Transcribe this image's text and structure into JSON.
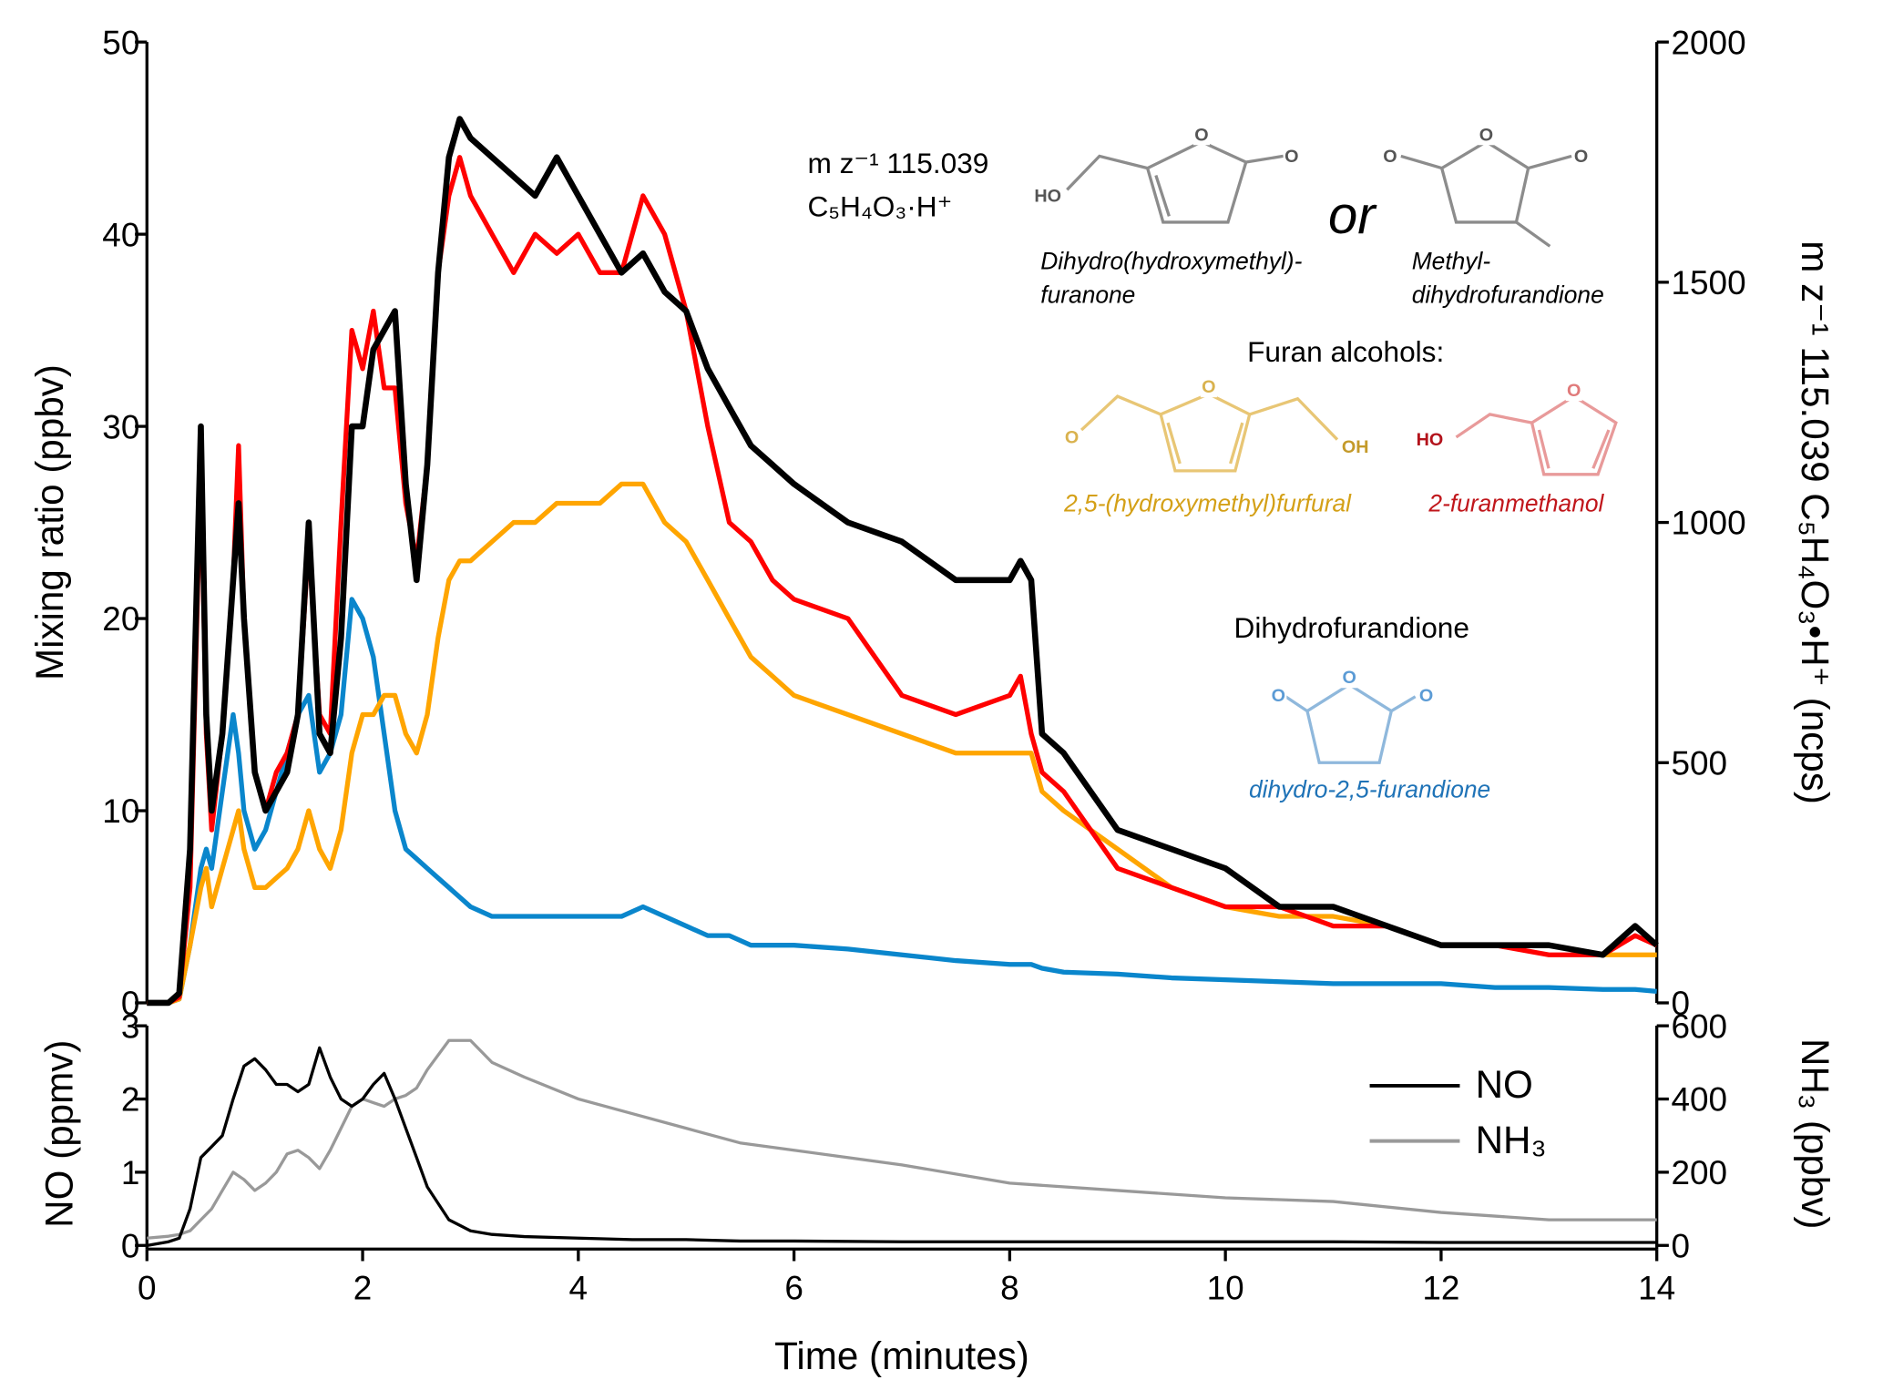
{
  "chart_data": [
    {
      "type": "line",
      "ylabel": "Mixing ratio (ppbv)",
      "y2label": "m z⁻¹ 115.039 C₅H₄O₃•H⁺ (ncps)",
      "xlim": [
        0,
        14
      ],
      "ylim": [
        0,
        50
      ],
      "yticks": [
        0,
        10,
        20,
        30,
        40,
        50
      ],
      "y2lim": [
        0,
        2000
      ],
      "y2ticks": [
        0,
        500,
        1000,
        1500,
        2000
      ],
      "x": [
        0,
        0.2,
        0.3,
        0.4,
        0.5,
        0.55,
        0.6,
        0.7,
        0.8,
        0.85,
        0.9,
        1.0,
        1.1,
        1.2,
        1.3,
        1.4,
        1.5,
        1.6,
        1.7,
        1.8,
        1.9,
        2.0,
        2.1,
        2.2,
        2.3,
        2.4,
        2.5,
        2.6,
        2.7,
        2.8,
        2.9,
        3.0,
        3.2,
        3.4,
        3.6,
        3.8,
        4.0,
        4.2,
        4.4,
        4.6,
        4.8,
        5.0,
        5.2,
        5.4,
        5.6,
        5.8,
        6.0,
        6.5,
        7.0,
        7.5,
        8.0,
        8.1,
        8.2,
        8.3,
        8.5,
        9.0,
        9.5,
        10.0,
        10.5,
        11.0,
        11.5,
        12.0,
        12.5,
        13.0,
        13.5,
        13.8,
        14.0
      ],
      "series": [
        {
          "name": "2-furanmethanol",
          "color": "#ff0000",
          "values": [
            0,
            0,
            0.3,
            6,
            28,
            14,
            9,
            14,
            22,
            29,
            20,
            12,
            10,
            12,
            13,
            15,
            24,
            15,
            14,
            25,
            35,
            33,
            36,
            32,
            32,
            26,
            23,
            28,
            38,
            42,
            44,
            42,
            40,
            38,
            40,
            39,
            40,
            38,
            38,
            42,
            40,
            36,
            30,
            25,
            24,
            22,
            21,
            20,
            16,
            15,
            16,
            17,
            14,
            12,
            11,
            7,
            6,
            5,
            5,
            4,
            4,
            3,
            3,
            2.5,
            2.5,
            3.5,
            3
          ]
        },
        {
          "name": "2,5-(hydroxymethyl)furfural",
          "color": "#ffa500",
          "values": [
            0,
            0,
            0.2,
            3,
            6,
            7,
            5,
            7,
            9,
            10,
            8,
            6,
            6,
            6.5,
            7,
            8,
            10,
            8,
            7,
            9,
            13,
            15,
            15,
            16,
            16,
            14,
            13,
            15,
            19,
            22,
            23,
            23,
            24,
            25,
            25,
            26,
            26,
            26,
            27,
            27,
            25,
            24,
            22,
            20,
            18,
            17,
            16,
            15,
            14,
            13,
            13,
            13,
            13,
            11,
            10,
            8,
            6,
            5,
            4.5,
            4.5,
            4,
            3,
            3,
            3,
            2.5,
            2.5,
            2.5
          ]
        },
        {
          "name": "dihydro-2,5-furandione",
          "color": "#0a86cc",
          "values": [
            0,
            0,
            0.2,
            3,
            7,
            8,
            7,
            11,
            15,
            13,
            10,
            8,
            9,
            11,
            13,
            15,
            16,
            12,
            13,
            15,
            21,
            20,
            18,
            14,
            10,
            8,
            7.5,
            7,
            6.5,
            6,
            5.5,
            5,
            4.5,
            4.5,
            4.5,
            4.5,
            4.5,
            4.5,
            4.5,
            5,
            4.5,
            4,
            3.5,
            3.5,
            3,
            3,
            3,
            2.8,
            2.5,
            2.2,
            2,
            2,
            2,
            1.8,
            1.6,
            1.5,
            1.3,
            1.2,
            1.1,
            1,
            1,
            1,
            0.8,
            0.8,
            0.7,
            0.7,
            0.6
          ]
        },
        {
          "color": "#000000",
          "values": [
            0,
            0,
            0.5,
            8,
            30,
            15,
            10,
            14,
            22,
            26,
            20,
            12,
            10,
            11,
            12,
            15,
            25,
            14,
            13,
            19,
            30,
            30,
            34,
            35,
            36,
            27,
            22,
            28,
            38,
            44,
            46,
            45,
            44,
            43,
            42,
            44,
            42,
            40,
            38,
            39,
            37,
            36,
            33,
            31,
            29,
            28,
            27,
            25,
            24,
            22,
            22,
            23,
            22,
            14,
            13,
            9,
            8,
            7,
            5,
            5,
            4,
            3,
            3,
            3,
            2.5,
            4,
            3
          ]
        }
      ],
      "annotations": [
        "m z⁻¹ 115.039",
        "C₅H₄O₃·H⁺",
        "Dihydro(hydroxymethyl)-",
        "furanone",
        "or",
        "Methyl-",
        "dihydrofurandione",
        "Furan alcohols:",
        "2,5-(hydroxymethyl)furfural",
        "2-furanmethanol",
        "Dihydrofurandione",
        "dihydro-2,5-furandione"
      ],
      "atoms": [
        "HO",
        "O",
        "O",
        "O",
        "O",
        "O",
        "O",
        "O",
        "OH",
        "HO",
        "O",
        "O",
        "O",
        "O"
      ]
    },
    {
      "type": "line",
      "xlabel": "Time (minutes)",
      "ylabel": "NO (ppmv)",
      "y2label": "NH₃ (ppbv)",
      "xlim": [
        0,
        14
      ],
      "xticks": [
        0,
        2,
        4,
        6,
        8,
        10,
        12,
        14
      ],
      "ylim": [
        -0.05,
        3.1
      ],
      "yticks": [
        0,
        1,
        2,
        3
      ],
      "y2lim": [
        -10,
        620
      ],
      "y2ticks": [
        0,
        200,
        400,
        600
      ],
      "legend": "right",
      "x": [
        0,
        0.2,
        0.3,
        0.4,
        0.5,
        0.6,
        0.7,
        0.8,
        0.9,
        1.0,
        1.1,
        1.2,
        1.3,
        1.4,
        1.5,
        1.6,
        1.7,
        1.8,
        1.9,
        2.0,
        2.1,
        2.2,
        2.3,
        2.4,
        2.5,
        2.6,
        2.8,
        3.0,
        3.2,
        3.5,
        4,
        4.5,
        5,
        5.5,
        6,
        7,
        8,
        9,
        10,
        11,
        12,
        13,
        14
      ],
      "series": [
        {
          "name": "NO",
          "color": "#000000",
          "values": [
            0,
            0.05,
            0.1,
            0.5,
            1.2,
            1.35,
            1.5,
            2.0,
            2.45,
            2.55,
            2.4,
            2.2,
            2.2,
            2.1,
            2.2,
            2.7,
            2.3,
            2.0,
            1.9,
            2.0,
            2.2,
            2.35,
            2.0,
            1.6,
            1.2,
            0.8,
            0.35,
            0.2,
            0.15,
            0.12,
            0.1,
            0.08,
            0.08,
            0.06,
            0.06,
            0.05,
            0.05,
            0.05,
            0.05,
            0.05,
            0.04,
            0.04,
            0.04
          ]
        },
        {
          "name": "NH₃",
          "color": "#999999",
          "axis": "y2",
          "values": [
            20,
            25,
            30,
            40,
            70,
            100,
            150,
            200,
            180,
            150,
            170,
            200,
            250,
            260,
            240,
            210,
            260,
            320,
            380,
            400,
            390,
            380,
            400,
            410,
            430,
            480,
            560,
            560,
            500,
            460,
            400,
            360,
            320,
            280,
            260,
            220,
            170,
            150,
            130,
            120,
            90,
            70,
            70
          ]
        }
      ]
    }
  ]
}
